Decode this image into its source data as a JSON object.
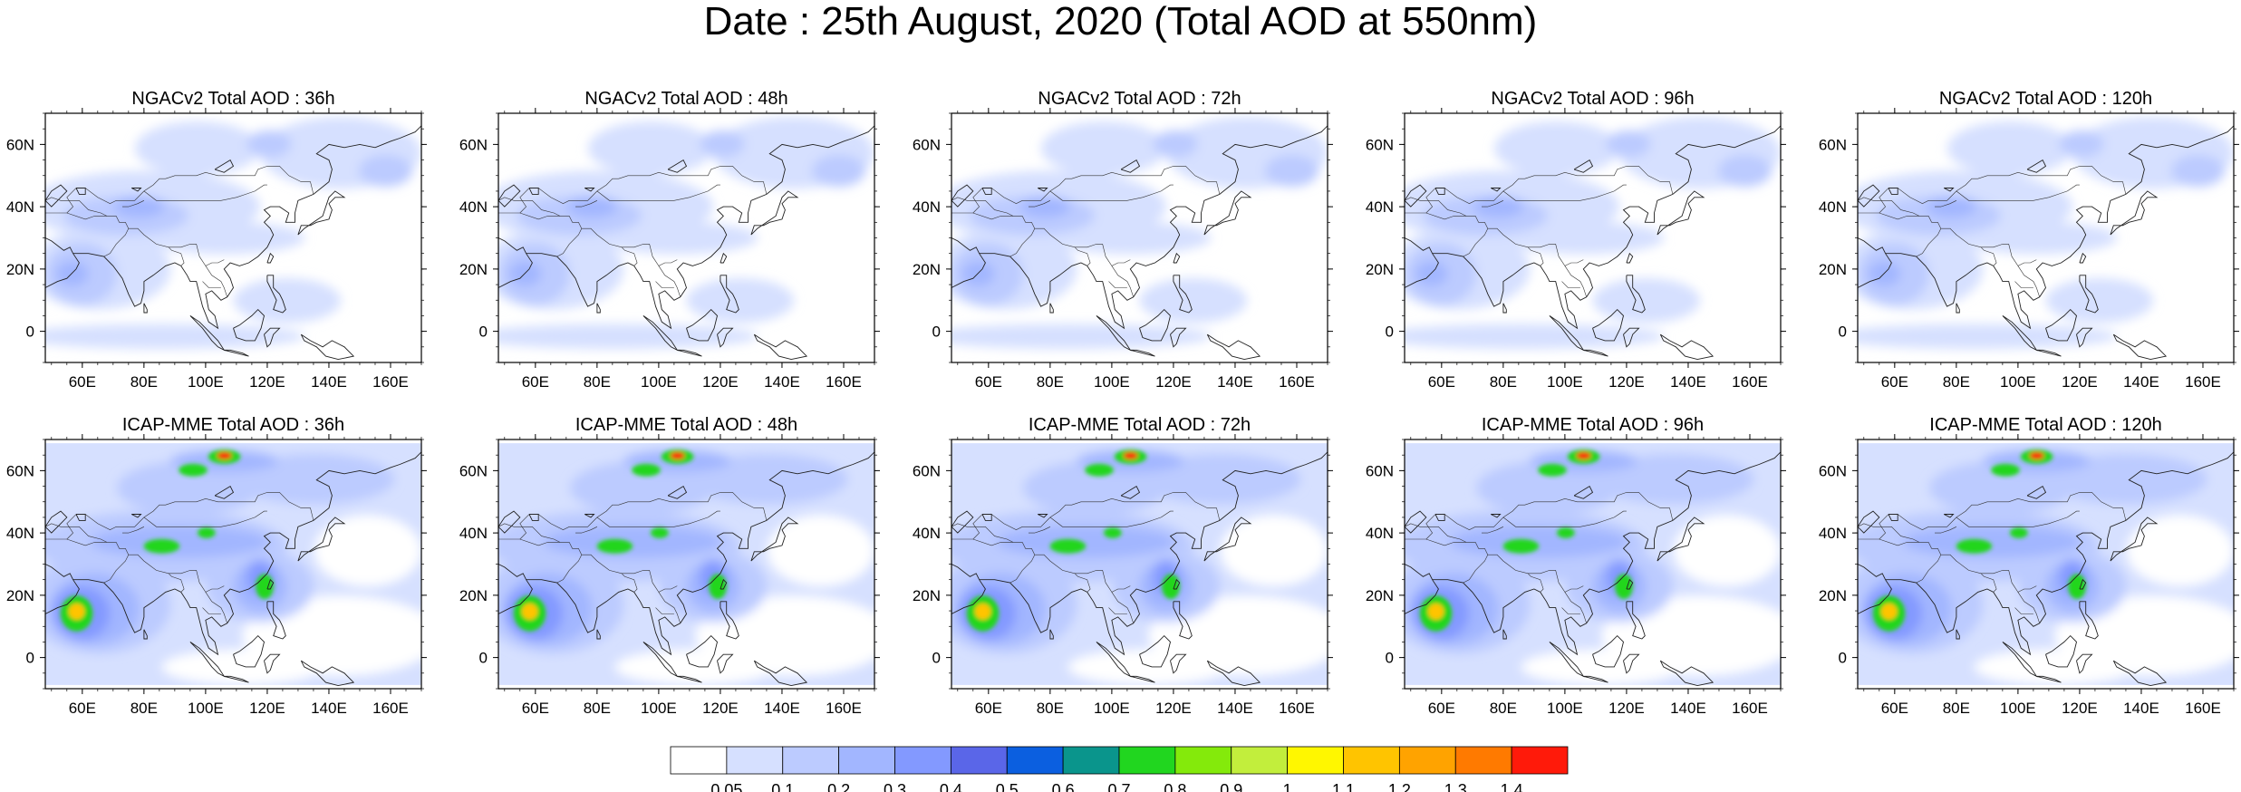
{
  "title": "Date : 25th August, 2020 (Total AOD at 550nm)",
  "rows": [
    {
      "model": "NGACv2",
      "panels": [
        {
          "title": "NGACv2 Total AOD : 36h"
        },
        {
          "title": "NGACv2 Total AOD : 48h"
        },
        {
          "title": "NGACv2 Total AOD : 72h"
        },
        {
          "title": "NGACv2 Total AOD : 96h"
        },
        {
          "title": "NGACv2 Total AOD : 120h"
        }
      ]
    },
    {
      "model": "ICAP-MME",
      "panels": [
        {
          "title": "ICAP-MME Total AOD : 36h"
        },
        {
          "title": "ICAP-MME Total AOD : 48h"
        },
        {
          "title": "ICAP-MME Total AOD : 72h"
        },
        {
          "title": "ICAP-MME Total AOD : 96h"
        },
        {
          "title": "ICAP-MME Total AOD : 120h"
        }
      ]
    }
  ],
  "lat_ticks": [
    "60N",
    "40N",
    "20N",
    "0"
  ],
  "lon_ticks": [
    "60E",
    "80E",
    "100E",
    "120E",
    "140E",
    "160E"
  ],
  "colorbar": {
    "labels": [
      "0.05",
      "0.1",
      "0.2",
      "0.3",
      "0.4",
      "0.5",
      "0.6",
      "0.7",
      "0.8",
      "0.9",
      "1",
      "1.1",
      "1.2",
      "1.3",
      "1.4"
    ],
    "colors": [
      "#ffffff",
      "#d6e0ff",
      "#bccbff",
      "#a2b6ff",
      "#8399ff",
      "#5a66e8",
      "#0b5fe0",
      "#0a958c",
      "#21d61f",
      "#84ea0b",
      "#c2ee3c",
      "#fff700",
      "#ffc400",
      "#ffa300",
      "#ff7a00",
      "#ff1a0a"
    ]
  }
}
